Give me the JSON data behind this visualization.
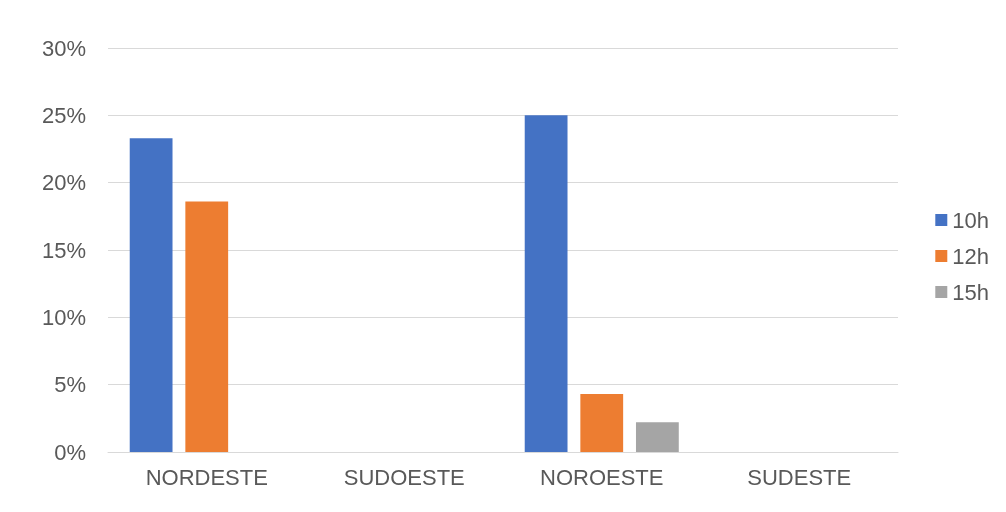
{
  "chart_data": {
    "type": "bar",
    "categories": [
      "NORDESTE",
      "SUDOESTE",
      "NOROESTE",
      "SUDESTE"
    ],
    "series": [
      {
        "name": "10h",
        "color": "#4472c4",
        "values": [
          23.3,
          0,
          25.0,
          0
        ]
      },
      {
        "name": "12h",
        "color": "#ed7d31",
        "values": [
          18.6,
          0,
          4.3,
          0
        ]
      },
      {
        "name": "15h",
        "color": "#a5a5a5",
        "values": [
          0,
          0,
          2.2,
          0
        ]
      }
    ],
    "ylim": [
      0,
      30
    ],
    "yticks": [
      {
        "value": 0,
        "label": "0%"
      },
      {
        "value": 5,
        "label": "5%"
      },
      {
        "value": 10,
        "label": "10%"
      },
      {
        "value": 15,
        "label": "15%"
      },
      {
        "value": 20,
        "label": "20%"
      },
      {
        "value": 25,
        "label": "25%"
      },
      {
        "value": 30,
        "label": "30%"
      }
    ],
    "grid": "y",
    "legend": "right"
  }
}
